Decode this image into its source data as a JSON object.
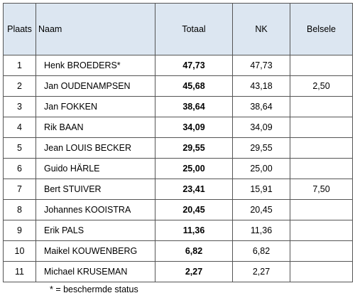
{
  "table": {
    "columns": [
      "Plaats",
      "Naam",
      "Totaal",
      "NK",
      "Belsele"
    ],
    "rows": [
      [
        "1",
        "Henk BROEDERS*",
        "47,73",
        "47,73",
        null
      ],
      [
        "2",
        "Jan OUDENAMPSEN",
        "45,68",
        "43,18",
        "2,50"
      ],
      [
        "3",
        "Jan FOKKEN",
        "38,64",
        "38,64",
        null
      ],
      [
        "4",
        "Rik BAAN",
        "34,09",
        "34,09",
        null
      ],
      [
        "5",
        "Jean LOUIS BECKER",
        "29,55",
        "29,55",
        null
      ],
      [
        "6",
        "Guido HÄRLE",
        "25,00",
        "25,00",
        null
      ],
      [
        "7",
        "Bert STUIVER",
        "23,41",
        "15,91",
        "7,50"
      ],
      [
        "8",
        "Johannes KOOISTRA",
        "20,45",
        "20,45",
        null
      ],
      [
        "9",
        "Erik PALS",
        "11,36",
        "11,36",
        null
      ],
      [
        "10",
        "Maikel KOUWENBERG",
        "6,82",
        "6,82",
        null
      ],
      [
        "11",
        "Michael KRUSEMAN",
        "2,27",
        "2,27",
        null
      ]
    ]
  },
  "footnote": "* = beschermde status"
}
